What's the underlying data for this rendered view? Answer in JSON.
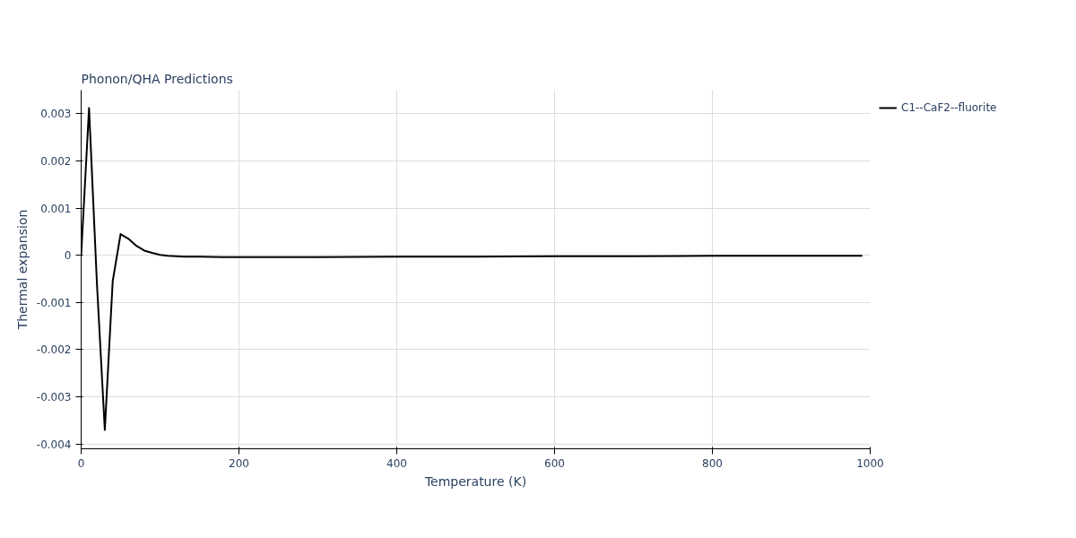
{
  "chart_data": {
    "type": "line",
    "title": "Phonon/QHA Predictions",
    "xlabel": "Temperature (K)",
    "ylabel": "Thermal expansion",
    "x": [
      0,
      10,
      20,
      30,
      40,
      50,
      60,
      70,
      80,
      90,
      100,
      110,
      120,
      130,
      150,
      180,
      200,
      300,
      400,
      500,
      600,
      700,
      800,
      900,
      990
    ],
    "series": [
      {
        "name": "C1--CaF2--fluorite",
        "color": "#000000",
        "values": [
          0,
          0.00312,
          -0.0006,
          -0.0037,
          -0.00055,
          0.00045,
          0.00035,
          0.0002,
          0.0001,
          5e-05,
          1e-05,
          -1e-05,
          -2e-05,
          -3e-05,
          -3e-05,
          -4e-05,
          -4e-05,
          -4e-05,
          -3e-05,
          -3e-05,
          -2e-05,
          -2e-05,
          -1e-05,
          -1e-05,
          -1e-05
        ]
      }
    ],
    "xlim": [
      0,
      1000
    ],
    "xticks": [
      0,
      200,
      400,
      600,
      800,
      1000
    ],
    "ylim": [
      -0.0041,
      0.0035
    ],
    "yticks": [
      -0.004,
      -0.003,
      -0.002,
      -0.001,
      0,
      0.001,
      0.002,
      0.003
    ],
    "grid": true,
    "legend": "top right"
  }
}
